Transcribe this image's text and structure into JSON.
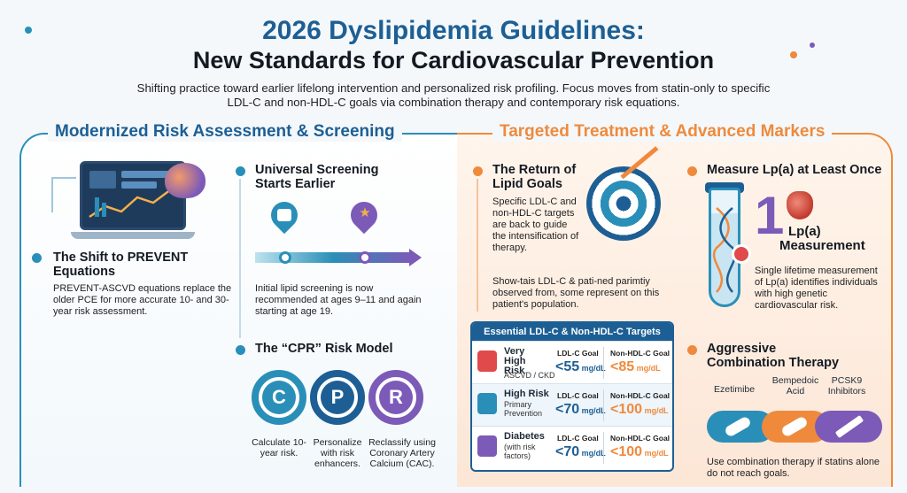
{
  "header": {
    "title_line1": "2026 Dyslipidemia Guidelines:",
    "title_line2": "New Standards for Cardiovascular Prevention",
    "subtitle": "Shifting practice toward earlier lifelong intervention and personalized risk profiling. Focus moves from statin-only to specific LDL-C and non-HDL-C goals via combination therapy and contemporary risk equations."
  },
  "left": {
    "title": "Modernized Risk Assessment & Screening",
    "prevent": {
      "heading": "The Shift to PREVENT Equations",
      "body": "PREVENT-ASCVD equations replace the older PCE for more accurate 10- and 30-year risk assessment."
    },
    "screening": {
      "heading_line1": "Universal Screening",
      "heading_line2": "Starts Earlier",
      "body": "Initial lipid screening is now recommended at ages 9–11 and again starting at age 19."
    },
    "cpr": {
      "heading": "The “CPR” Risk Model",
      "steps": [
        {
          "letter": "C",
          "caption": "Calculate 10-year risk.",
          "color": "#2a8fb8"
        },
        {
          "letter": "P",
          "caption": "Personalize with risk enhancers.",
          "color": "#1d5f94"
        },
        {
          "letter": "R",
          "caption": "Reclassify using Coronary Artery Calcium (CAC).",
          "color": "#7c5ab8"
        }
      ]
    }
  },
  "right": {
    "title": "Targeted Treatment & Advanced Markers",
    "goals": {
      "heading_line1": "The Return of",
      "heading_line2": "Lipid Goals",
      "body": "Specific LDL-C and non-HDL-C targets are back to guide the intensification of therapy.",
      "note": "Show-tais LDL-C & pati-ned parimtiy observed from, some represent on this patient's population."
    },
    "table": {
      "title": "Essential LDL-C & Non-HDL-C Targets",
      "rows": [
        {
          "name": "Very High Risk",
          "sub": "ASCVD / CKD",
          "ldl_label": "LDL-C Goal",
          "ldl": "<55",
          "non_label": "Non-HDL-C Goal",
          "non": "<85",
          "unit": "mg/dL"
        },
        {
          "name": "High Risk",
          "sub": "Primary Prevention",
          "ldl_label": "LDL-C Goal",
          "ldl": "<70",
          "non_label": "Non-HDL-C Goal",
          "non": "<100",
          "unit": "mg/dL"
        },
        {
          "name": "Diabetes",
          "sub": "(with risk factors)",
          "ldl_label": "LDL-C Goal",
          "ldl": "<70",
          "non_label": "Non-HDL-C Goal",
          "non": "<100",
          "unit": "mg/dL"
        }
      ]
    },
    "lpa": {
      "heading": "Measure Lp(a) at Least Once",
      "big_number": "1",
      "label_line1": "Lp(a)",
      "label_line2": "Measurement",
      "body": "Single lifetime measurement of Lp(a) identifies individuals with high genetic cardiovascular risk."
    },
    "combo": {
      "heading_line1": "Aggressive",
      "heading_line2": "Combination Therapy",
      "drugs": [
        "Ezetimibe",
        "Bempedoic Acid",
        "PCSK9 Inhibitors"
      ],
      "body": "Use combination therapy if statins alone do not reach goals."
    }
  }
}
